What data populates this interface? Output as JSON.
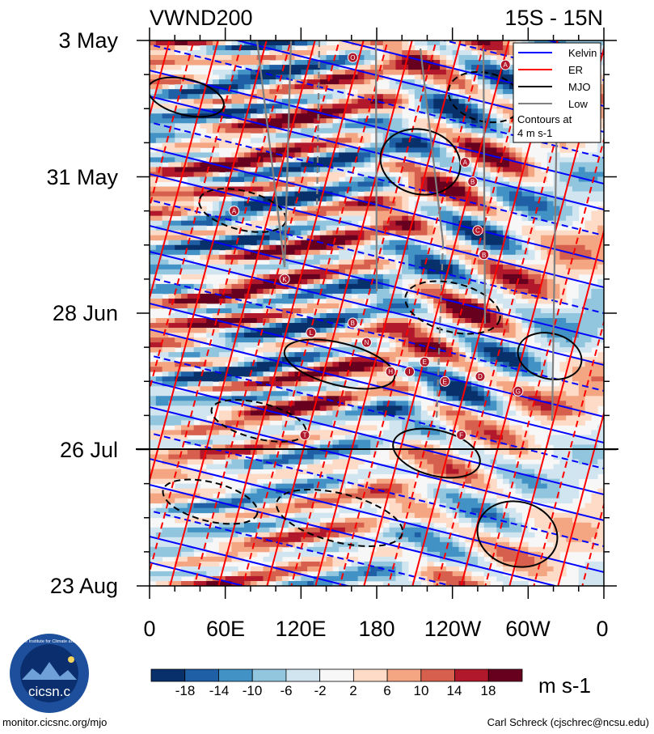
{
  "chart_data": {
    "type": "heatmap",
    "title_left": "VWND200",
    "title_right": "15S - 15N",
    "x_ticks": [
      "0",
      "60E",
      "120E",
      "180",
      "120W",
      "60W",
      "0"
    ],
    "x_range_deg": [
      0,
      360
    ],
    "y_ticks": [
      "3 May",
      "31 May",
      "28 Jun",
      "26 Jul",
      "23 Aug"
    ],
    "y_range_days": [
      0,
      112
    ],
    "forecast_line_label": "26 Jul",
    "legend": {
      "items": [
        {
          "name": "Kelvin",
          "color": "#0000ff"
        },
        {
          "name": "ER",
          "color": "#ff0000"
        },
        {
          "name": "MJO",
          "color": "#000000"
        },
        {
          "name": "Low",
          "color": "#808080"
        }
      ],
      "note_line1": "Contours at",
      "note_line2": "4 m s-1"
    },
    "colorbar": {
      "labels": [
        "-18",
        "-14",
        "-10",
        "-6",
        "-2",
        "2",
        "6",
        "10",
        "14",
        "18"
      ],
      "colors": [
        "#08306b",
        "#1f5fa5",
        "#4292c6",
        "#92c5de",
        "#d1e5f0",
        "#f7f7f7",
        "#fddbc7",
        "#f4a582",
        "#d6604d",
        "#b2182b",
        "#67001f"
      ],
      "units": "m s-1"
    },
    "wave_markers": [
      {
        "letter": "O",
        "lon": 161,
        "day": 3.5
      },
      {
        "letter": "A",
        "lon": 282,
        "day": 5
      },
      {
        "letter": "A",
        "lon": 250,
        "day": 25
      },
      {
        "letter": "B",
        "lon": 256,
        "day": 29
      },
      {
        "letter": "A",
        "lon": 67,
        "day": 35
      },
      {
        "letter": "C",
        "lon": 260,
        "day": 39
      },
      {
        "letter": "B",
        "lon": 265,
        "day": 44
      },
      {
        "letter": "K",
        "lon": 107,
        "day": 49
      },
      {
        "letter": "B",
        "lon": 161,
        "day": 58
      },
      {
        "letter": "L",
        "lon": 128,
        "day": 60
      },
      {
        "letter": "N",
        "lon": 172,
        "day": 62
      },
      {
        "letter": "E",
        "lon": 218,
        "day": 66
      },
      {
        "letter": "H",
        "lon": 191,
        "day": 68
      },
      {
        "letter": "I",
        "lon": 206,
        "day": 68
      },
      {
        "letter": "D",
        "lon": 262,
        "day": 69
      },
      {
        "letter": "E",
        "lon": 234,
        "day": 70
      },
      {
        "letter": "G",
        "lon": 292,
        "day": 72
      },
      {
        "letter": "T",
        "lon": 123,
        "day": 81
      },
      {
        "letter": "F",
        "lon": 247,
        "day": 81
      }
    ]
  },
  "logo": {
    "text": "cicsn.c",
    "ring_text": "Cooperative Institute for Climate and Satellites"
  },
  "footer": {
    "left": "monitor.cicsnc.org/mjo",
    "right": "Carl Schreck (cjschrec@ncsu.edu)"
  }
}
